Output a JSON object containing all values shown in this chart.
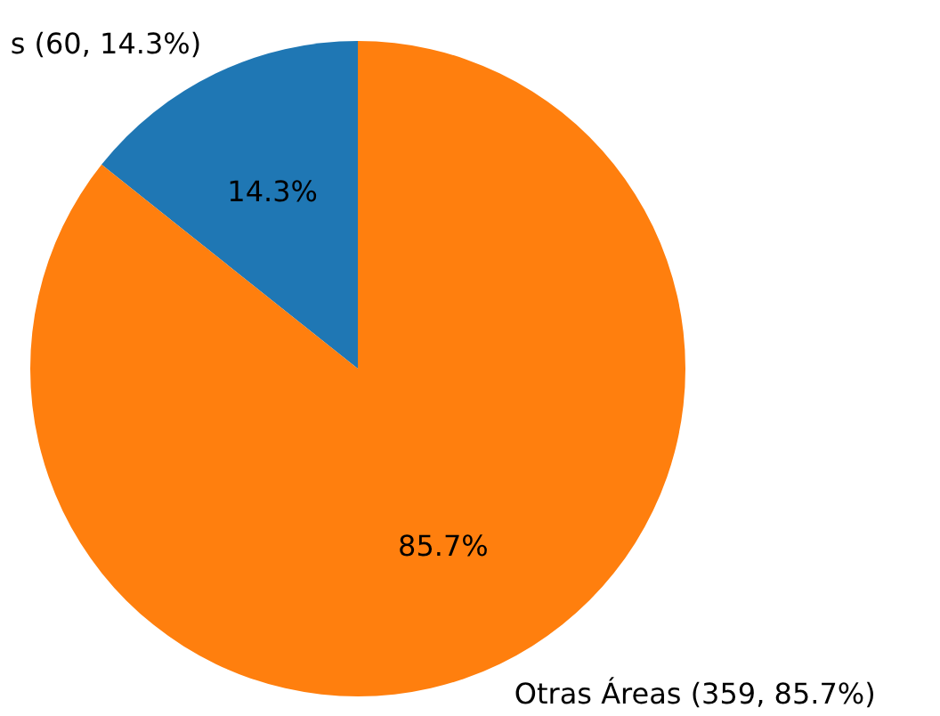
{
  "chart_data": {
    "type": "pie",
    "categories": [
      "s (60, 14.3%)",
      "Otras Áreas (359, 85.7%)"
    ],
    "values": [
      14.3,
      85.7
    ],
    "colors": [
      "#1f77b4",
      "#ff7f0e"
    ],
    "value_labels": [
      "14.3%",
      "85.7%"
    ]
  }
}
